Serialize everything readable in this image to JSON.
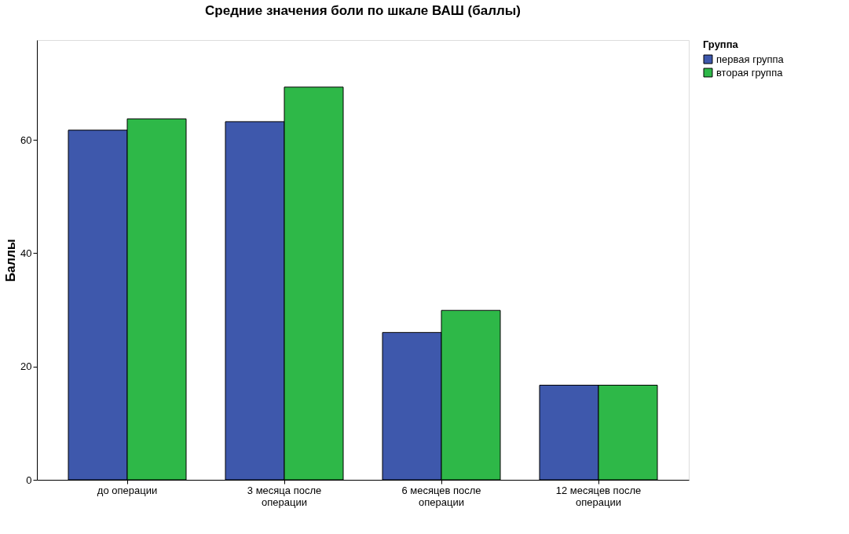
{
  "chart_data": {
    "type": "bar",
    "title": "Средние значения боли по шкале ВАШ (баллы)",
    "ylabel": "Баллы",
    "legend_title": "Группа",
    "categories": [
      "до операции",
      "3 месяца после операции",
      "6 месяцев после операции",
      "12 месяцев после операции"
    ],
    "series": [
      {
        "name": "первая группа",
        "color": "#3e58ac",
        "values": [
          61.7,
          63.2,
          26.0,
          16.7
        ]
      },
      {
        "name": "вторая группа",
        "color": "#2eb848",
        "values": [
          63.7,
          69.3,
          29.9,
          16.7
        ]
      }
    ],
    "ylim": [
      0,
      77.6
    ],
    "yticks": [
      0,
      20,
      40,
      60
    ],
    "grid": false,
    "legend": "top right"
  }
}
